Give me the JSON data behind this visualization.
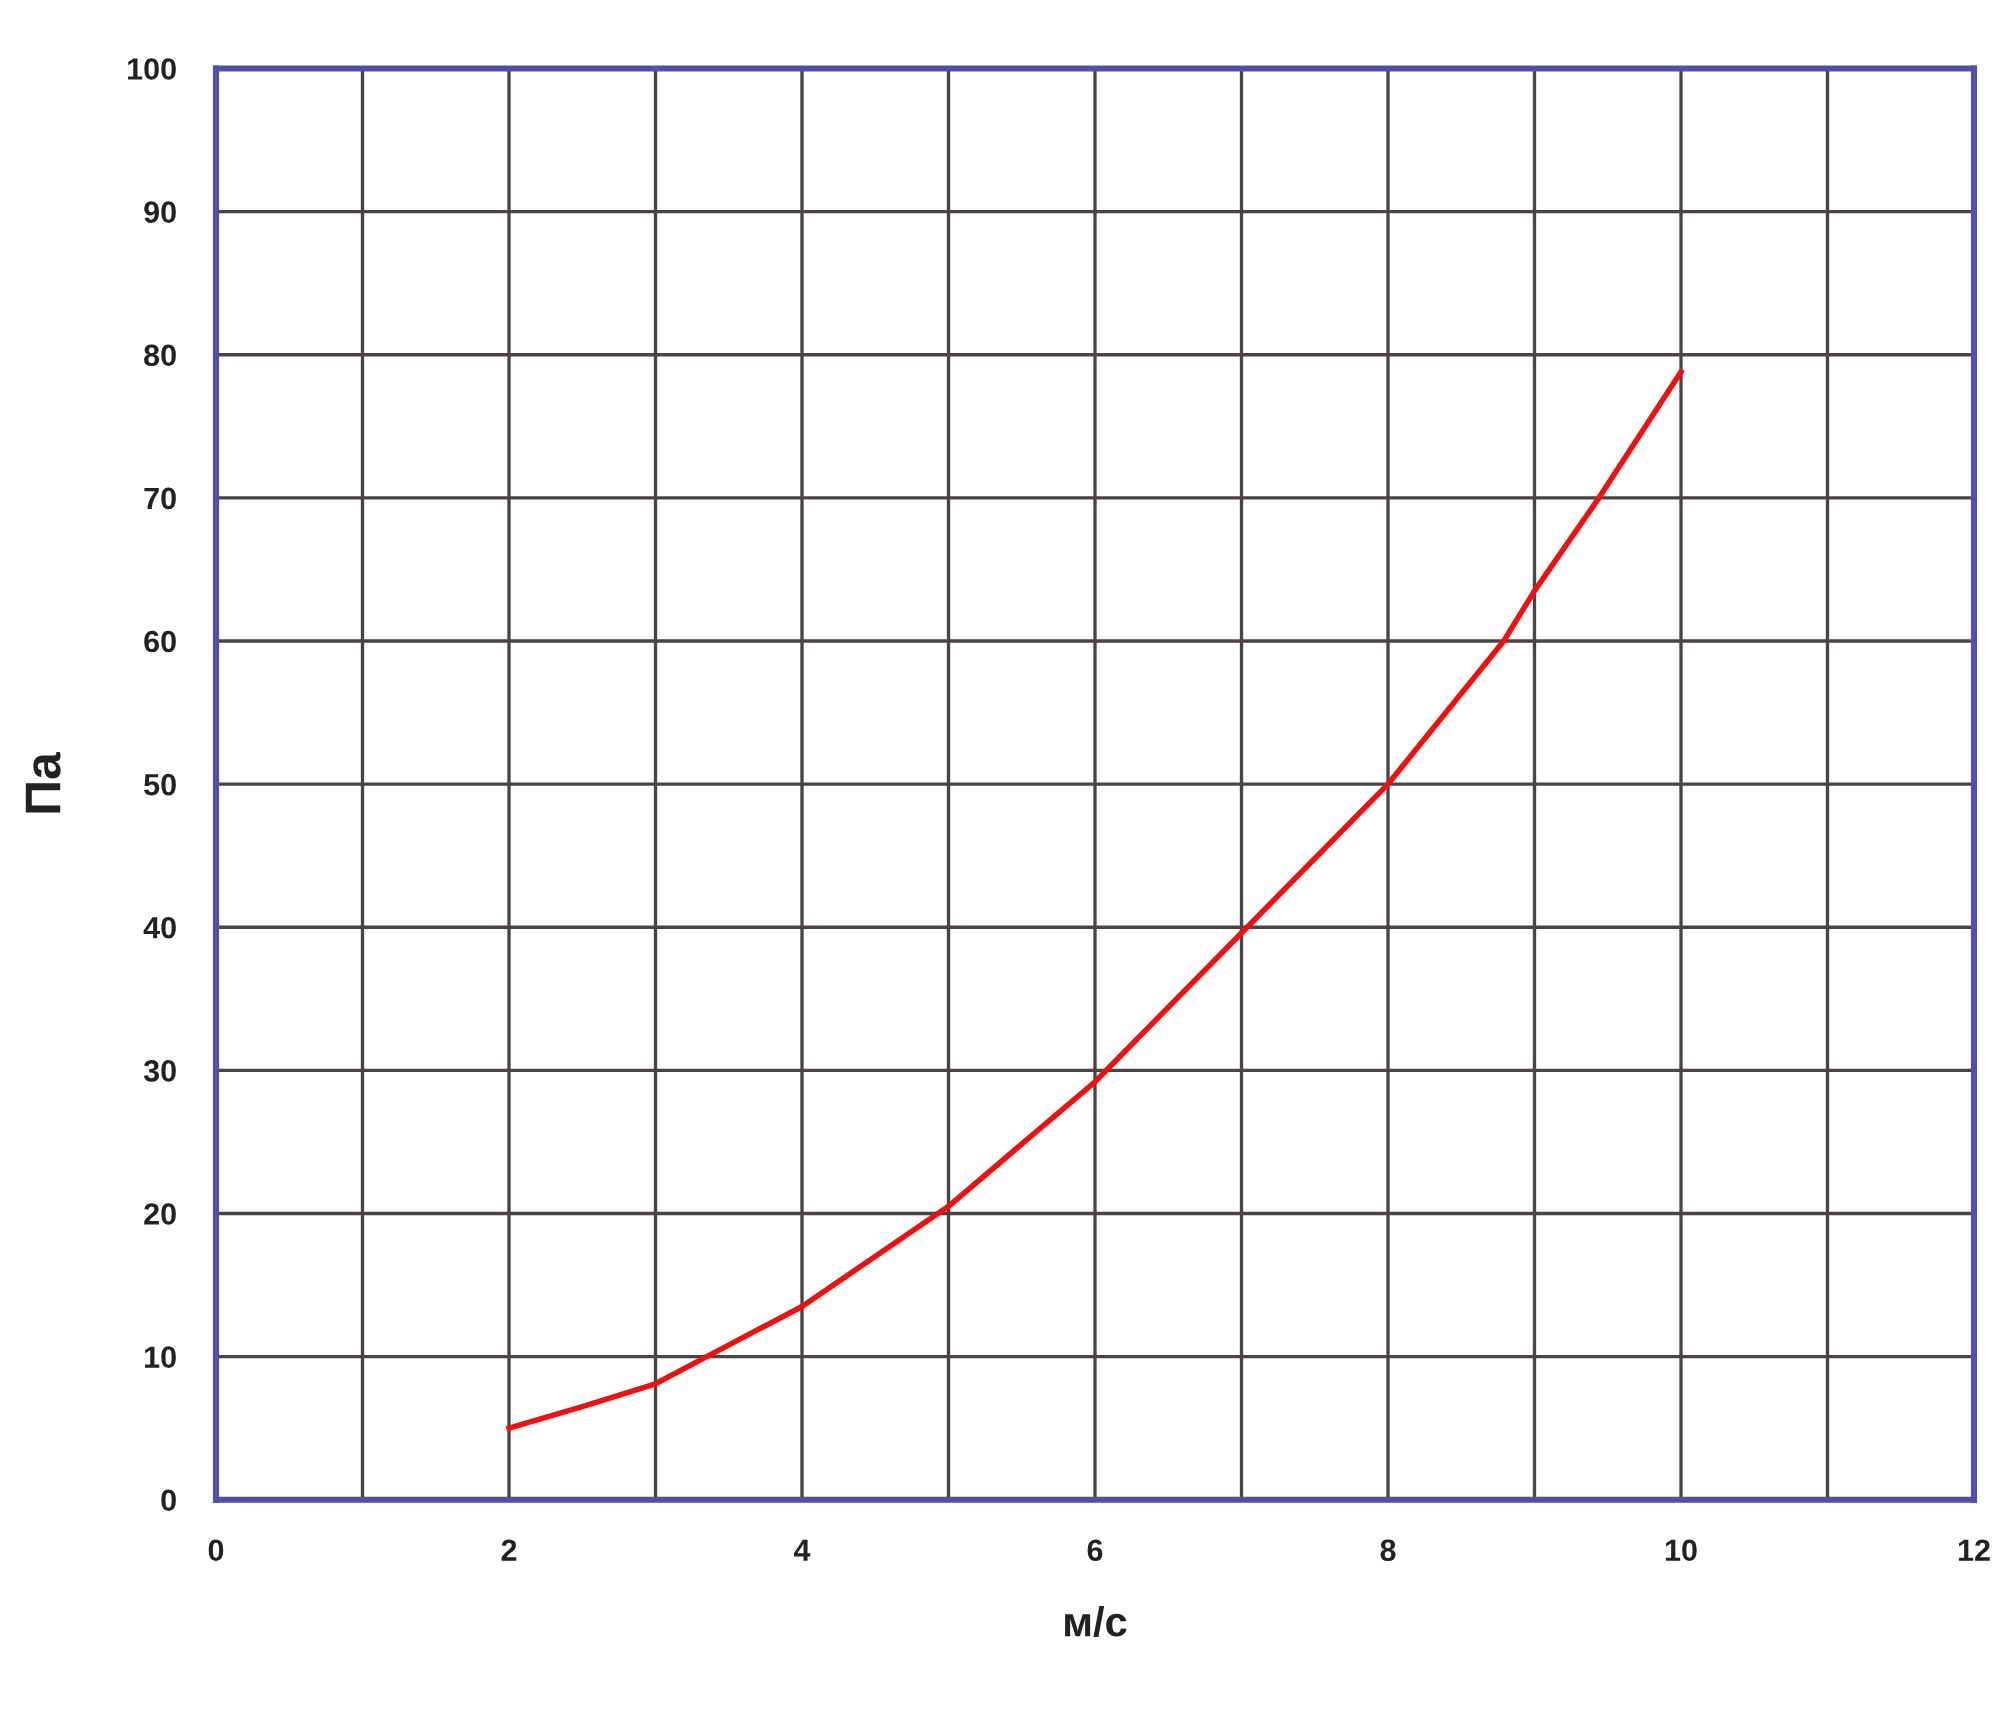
{
  "chart_data": {
    "type": "line",
    "xlabel": "м/с",
    "ylabel": "Па",
    "series": [
      {
        "color": "#ee1111",
        "x": [
          2,
          2.5,
          3,
          3.35,
          4,
          5,
          6,
          7,
          8,
          8.79,
          9,
          9.44,
          10
        ],
        "values": [
          5,
          6.5,
          8.1,
          10,
          13.5,
          20.5,
          29.2,
          39.6,
          50,
          60,
          63.5,
          70,
          78.8
        ]
      }
    ],
    "xlim": [
      0,
      12
    ],
    "xticks": [
      0,
      {
        "value": 1,
        "label": null
      },
      2,
      {
        "value": 3,
        "label": null
      },
      4,
      {
        "value": 5,
        "label": null
      },
      6,
      {
        "value": 7,
        "label": null
      },
      8,
      {
        "value": 9,
        "label": null
      },
      10,
      {
        "value": 11,
        "label": null
      },
      12
    ],
    "ylim": [
      0,
      100
    ],
    "yticks": [
      0,
      10,
      20,
      30,
      40,
      50,
      60,
      70,
      80,
      90,
      100
    ],
    "grid": true,
    "legend": false,
    "marker": "none",
    "line_style": "solid"
  }
}
